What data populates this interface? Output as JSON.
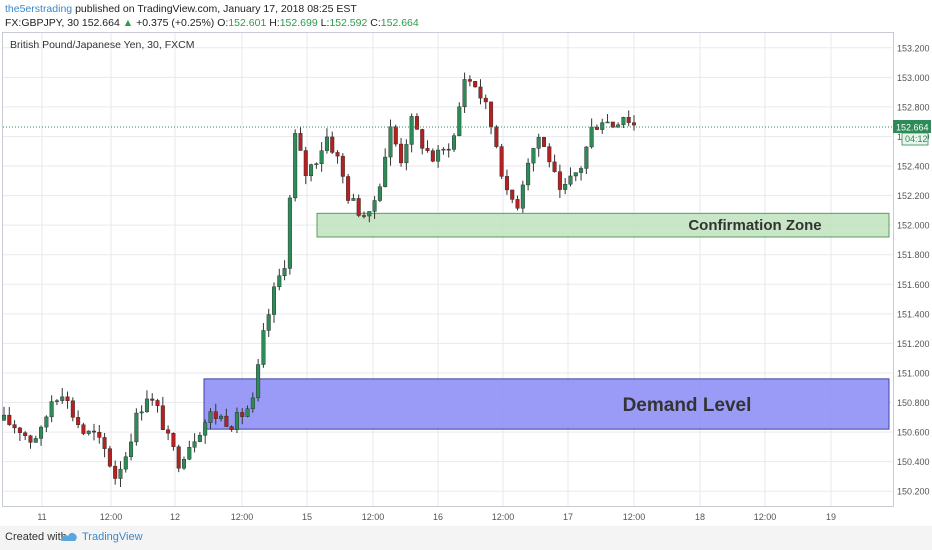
{
  "header": {
    "author": "the5erstrading",
    "published_text": "published on TradingView.com, January 17, 2018 08:25 EST",
    "symbol": "FX:GBPJPY, 30",
    "price": "152.664",
    "change_arrow": "▲",
    "change": "+0.375 (+0.25%)",
    "o_label": "O:",
    "o_value": "152.601",
    "h_label": "H:",
    "h_value": "152.699",
    "l_label": "L:",
    "l_value": "152.592",
    "c_label": "C:",
    "c_value": "152.664"
  },
  "chart_data": {
    "type": "candlestick",
    "title": "British Pound/Japanese Yen, 30, FXCM",
    "ylim": [
      150.1,
      153.3
    ],
    "y_ticks": [
      "150.200",
      "150.400",
      "150.600",
      "150.800",
      "151.000",
      "151.200",
      "151.400",
      "151.600",
      "151.800",
      "152.000",
      "152.200",
      "152.400",
      "152.600",
      "152.800",
      "153.000",
      "153.200"
    ],
    "x_ticks": [
      "11",
      "12:00",
      "12",
      "12:00",
      "15",
      "12:00",
      "16",
      "12:00",
      "17",
      "12:00",
      "18",
      "12:00",
      "19"
    ],
    "last_price_label": "152.664",
    "countdown_label": "04:12",
    "close_path": [
      [
        0,
        150.68
      ],
      [
        3,
        150.62
      ],
      [
        5,
        150.55
      ],
      [
        7,
        150.6
      ],
      [
        9,
        150.82
      ],
      [
        11,
        150.88
      ],
      [
        13,
        150.72
      ],
      [
        15,
        150.6
      ],
      [
        17,
        150.58
      ],
      [
        19,
        150.48
      ],
      [
        21,
        150.3
      ],
      [
        23,
        150.45
      ],
      [
        25,
        150.7
      ],
      [
        27,
        150.85
      ],
      [
        29,
        150.75
      ],
      [
        31,
        150.55
      ],
      [
        33,
        150.4
      ],
      [
        35,
        150.52
      ],
      [
        37,
        150.62
      ],
      [
        39,
        150.72
      ],
      [
        41,
        150.7
      ],
      [
        43,
        150.66
      ],
      [
        45,
        150.72
      ],
      [
        47,
        150.8
      ],
      [
        49,
        151.25
      ],
      [
        51,
        151.55
      ],
      [
        53,
        151.75
      ],
      [
        55,
        152.6
      ],
      [
        57,
        152.35
      ],
      [
        59,
        152.45
      ],
      [
        61,
        152.6
      ],
      [
        63,
        152.45
      ],
      [
        65,
        152.2
      ],
      [
        67,
        152.1
      ],
      [
        69,
        152.05
      ],
      [
        71,
        152.3
      ],
      [
        73,
        152.65
      ],
      [
        75,
        152.45
      ],
      [
        77,
        152.7
      ],
      [
        79,
        152.55
      ],
      [
        81,
        152.45
      ],
      [
        83,
        152.5
      ],
      [
        85,
        152.6
      ],
      [
        87,
        153.0
      ],
      [
        89,
        152.95
      ],
      [
        91,
        152.8
      ],
      [
        93,
        152.55
      ],
      [
        95,
        152.2
      ],
      [
        97,
        152.15
      ],
      [
        99,
        152.45
      ],
      [
        101,
        152.6
      ],
      [
        103,
        152.45
      ],
      [
        105,
        152.2
      ],
      [
        107,
        152.3
      ],
      [
        109,
        152.4
      ],
      [
        111,
        152.65
      ],
      [
        113,
        152.72
      ],
      [
        115,
        152.68
      ],
      [
        117,
        152.75
      ],
      [
        119,
        152.68
      ]
    ],
    "zones": [
      {
        "label": "Confirmation Zone",
        "y_low": 151.92,
        "y_high": 152.08,
        "from": "15",
        "color": "#bfe3bd"
      },
      {
        "label": "Demand Level",
        "y_low": 150.62,
        "y_high": 150.96,
        "from": "12",
        "color": "#8f91f7"
      }
    ]
  },
  "footer": {
    "created_with": "Created with",
    "brand": "TradingView"
  }
}
